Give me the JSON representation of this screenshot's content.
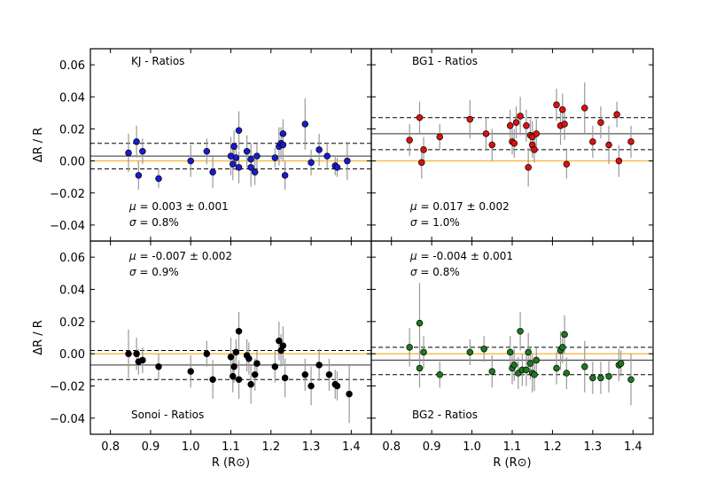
{
  "chart_data": {
    "type": "scatter",
    "xlabel": "R (R⊙)",
    "ylabel": "ΔR / R",
    "xlim": [
      0.75,
      1.45
    ],
    "ylim": [
      -0.05,
      0.07
    ],
    "xticks": [
      "0.8",
      "0.9",
      "1.0",
      "1.1",
      "1.2",
      "1.3",
      "1.4"
    ],
    "xtick_values": [
      0.8,
      0.9,
      1.0,
      1.1,
      1.2,
      1.3,
      1.4
    ],
    "yticks_top": [
      "0.06",
      "0.04",
      "0.02",
      "0.00",
      "−0.02",
      "−0.04"
    ],
    "ytick_values_top": [
      0.06,
      0.04,
      0.02,
      0.0,
      -0.02,
      -0.04
    ],
    "yticks_bottom": [
      "0.06",
      "0.04",
      "0.02",
      "0.00",
      "−0.02",
      "−0.04"
    ],
    "ytick_values_bottom": [
      0.06,
      0.04,
      0.02,
      0.0,
      -0.02,
      -0.04
    ],
    "colors": {
      "zero_line": "#f5b942",
      "mean_line": "#555555",
      "error_bar": "#999999"
    },
    "panels": [
      {
        "title": "KJ - Ratios",
        "title_pos": "top-left",
        "stats_pos": "bottom-left",
        "mu_value": "0.003",
        "mu_err": "0.001",
        "sigma_value": "0.8%",
        "mean": 0.003,
        "band": [
          -0.005,
          0.011
        ],
        "color": "#1a1ad6",
        "points": [
          {
            "x": 0.845,
            "y": 0.005,
            "err": 0.012
          },
          {
            "x": 0.865,
            "y": 0.012,
            "err": 0.01
          },
          {
            "x": 0.87,
            "y": -0.009,
            "err": 0.009
          },
          {
            "x": 0.88,
            "y": 0.006,
            "err": 0.008
          },
          {
            "x": 0.92,
            "y": -0.011,
            "err": 0.006
          },
          {
            "x": 1.0,
            "y": 0.0,
            "err": 0.01
          },
          {
            "x": 1.04,
            "y": 0.006,
            "err": 0.008
          },
          {
            "x": 1.055,
            "y": -0.007,
            "err": 0.01
          },
          {
            "x": 1.1,
            "y": 0.003,
            "err": 0.012
          },
          {
            "x": 1.105,
            "y": -0.002,
            "err": 0.01
          },
          {
            "x": 1.108,
            "y": 0.009,
            "err": 0.01
          },
          {
            "x": 1.113,
            "y": 0.002,
            "err": 0.008
          },
          {
            "x": 1.12,
            "y": 0.019,
            "err": 0.012
          },
          {
            "x": 1.12,
            "y": -0.004,
            "err": 0.01
          },
          {
            "x": 1.14,
            "y": 0.006,
            "err": 0.01
          },
          {
            "x": 1.15,
            "y": 0.001,
            "err": 0.01
          },
          {
            "x": 1.15,
            "y": -0.004,
            "err": 0.012
          },
          {
            "x": 1.16,
            "y": -0.007,
            "err": 0.008
          },
          {
            "x": 1.165,
            "y": 0.003,
            "err": 0.008
          },
          {
            "x": 1.21,
            "y": 0.002,
            "err": 0.006
          },
          {
            "x": 1.22,
            "y": 0.009,
            "err": 0.012
          },
          {
            "x": 1.225,
            "y": 0.011,
            "err": 0.01
          },
          {
            "x": 1.23,
            "y": 0.01,
            "err": 0.01
          },
          {
            "x": 1.23,
            "y": 0.017,
            "err": 0.009
          },
          {
            "x": 1.235,
            "y": -0.009,
            "err": 0.009
          },
          {
            "x": 1.285,
            "y": 0.023,
            "err": 0.016
          },
          {
            "x": 1.3,
            "y": -0.001,
            "err": 0.008
          },
          {
            "x": 1.32,
            "y": 0.007,
            "err": 0.01
          },
          {
            "x": 1.34,
            "y": 0.003,
            "err": 0.008
          },
          {
            "x": 1.36,
            "y": -0.003,
            "err": 0.006
          },
          {
            "x": 1.365,
            "y": -0.004,
            "err": 0.006
          },
          {
            "x": 1.39,
            "y": 0.0,
            "err": 0.012
          }
        ]
      },
      {
        "title": "BG1 - Ratios",
        "title_pos": "top-left",
        "stats_pos": "bottom-left",
        "mu_value": "0.017",
        "mu_err": "0.002",
        "sigma_value": "1.0%",
        "mean": 0.017,
        "band": [
          0.007,
          0.027
        ],
        "color": "#e0110d",
        "points": [
          {
            "x": 0.845,
            "y": 0.013,
            "err": 0.01
          },
          {
            "x": 0.87,
            "y": 0.027,
            "err": 0.01
          },
          {
            "x": 0.875,
            "y": -0.001,
            "err": 0.01
          },
          {
            "x": 0.88,
            "y": 0.007,
            "err": 0.008
          },
          {
            "x": 0.92,
            "y": 0.015,
            "err": 0.008
          },
          {
            "x": 0.995,
            "y": 0.026,
            "err": 0.012
          },
          {
            "x": 1.035,
            "y": 0.017,
            "err": 0.01
          },
          {
            "x": 1.05,
            "y": 0.01,
            "err": 0.01
          },
          {
            "x": 1.095,
            "y": 0.022,
            "err": 0.01
          },
          {
            "x": 1.1,
            "y": 0.012,
            "err": 0.008
          },
          {
            "x": 1.105,
            "y": 0.011,
            "err": 0.009
          },
          {
            "x": 1.11,
            "y": 0.024,
            "err": 0.01
          },
          {
            "x": 1.12,
            "y": 0.028,
            "err": 0.012
          },
          {
            "x": 1.135,
            "y": 0.022,
            "err": 0.01
          },
          {
            "x": 1.14,
            "y": -0.004,
            "err": 0.012
          },
          {
            "x": 1.145,
            "y": 0.016,
            "err": 0.01
          },
          {
            "x": 1.15,
            "y": 0.015,
            "err": 0.01
          },
          {
            "x": 1.15,
            "y": 0.01,
            "err": 0.008
          },
          {
            "x": 1.16,
            "y": 0.017,
            "err": 0.009
          },
          {
            "x": 1.155,
            "y": 0.007,
            "err": 0.008
          },
          {
            "x": 1.21,
            "y": 0.035,
            "err": 0.01
          },
          {
            "x": 1.22,
            "y": 0.022,
            "err": 0.012
          },
          {
            "x": 1.225,
            "y": 0.032,
            "err": 0.01
          },
          {
            "x": 1.23,
            "y": 0.023,
            "err": 0.01
          },
          {
            "x": 1.235,
            "y": -0.002,
            "err": 0.009
          },
          {
            "x": 1.28,
            "y": 0.033,
            "err": 0.016
          },
          {
            "x": 1.3,
            "y": 0.012,
            "err": 0.01
          },
          {
            "x": 1.32,
            "y": 0.024,
            "err": 0.01
          },
          {
            "x": 1.34,
            "y": 0.01,
            "err": 0.012
          },
          {
            "x": 1.36,
            "y": 0.029,
            "err": 0.008
          },
          {
            "x": 1.365,
            "y": 0.0,
            "err": 0.01
          },
          {
            "x": 1.395,
            "y": 0.012,
            "err": 0.01
          }
        ]
      },
      {
        "title": "Sonoi - Ratios",
        "title_pos": "bottom-left",
        "stats_pos": "top-left",
        "mu_value": "-0.007",
        "mu_err": "0.002",
        "sigma_value": "0.9%",
        "mean": -0.007,
        "band": [
          -0.016,
          0.002
        ],
        "color": "#000000",
        "points": [
          {
            "x": 0.845,
            "y": 0.0,
            "err": 0.015
          },
          {
            "x": 0.865,
            "y": 0.0,
            "err": 0.01
          },
          {
            "x": 0.87,
            "y": -0.005,
            "err": 0.008
          },
          {
            "x": 0.88,
            "y": -0.004,
            "err": 0.008
          },
          {
            "x": 0.92,
            "y": -0.008,
            "err": 0.008
          },
          {
            "x": 1.0,
            "y": -0.011,
            "err": 0.01
          },
          {
            "x": 1.04,
            "y": 0.0,
            "err": 0.008
          },
          {
            "x": 1.055,
            "y": -0.016,
            "err": 0.012
          },
          {
            "x": 1.1,
            "y": -0.002,
            "err": 0.012
          },
          {
            "x": 1.105,
            "y": -0.014,
            "err": 0.01
          },
          {
            "x": 1.108,
            "y": -0.008,
            "err": 0.01
          },
          {
            "x": 1.113,
            "y": 0.001,
            "err": 0.008
          },
          {
            "x": 1.12,
            "y": 0.014,
            "err": 0.012
          },
          {
            "x": 1.12,
            "y": -0.016,
            "err": 0.012
          },
          {
            "x": 1.14,
            "y": -0.001,
            "err": 0.01
          },
          {
            "x": 1.145,
            "y": -0.003,
            "err": 0.01
          },
          {
            "x": 1.15,
            "y": -0.019,
            "err": 0.012
          },
          {
            "x": 1.16,
            "y": -0.013,
            "err": 0.01
          },
          {
            "x": 1.165,
            "y": -0.006,
            "err": 0.008
          },
          {
            "x": 1.21,
            "y": -0.008,
            "err": 0.01
          },
          {
            "x": 1.22,
            "y": 0.008,
            "err": 0.012
          },
          {
            "x": 1.225,
            "y": 0.002,
            "err": 0.01
          },
          {
            "x": 1.23,
            "y": 0.005,
            "err": 0.012
          },
          {
            "x": 1.235,
            "y": -0.015,
            "err": 0.012
          },
          {
            "x": 1.285,
            "y": -0.013,
            "err": 0.01
          },
          {
            "x": 1.3,
            "y": -0.02,
            "err": 0.012
          },
          {
            "x": 1.32,
            "y": -0.007,
            "err": 0.01
          },
          {
            "x": 1.345,
            "y": -0.013,
            "err": 0.01
          },
          {
            "x": 1.36,
            "y": -0.019,
            "err": 0.009
          },
          {
            "x": 1.365,
            "y": -0.02,
            "err": 0.009
          },
          {
            "x": 1.395,
            "y": -0.025,
            "err": 0.018
          }
        ]
      },
      {
        "title": "BG2 - Ratios",
        "title_pos": "bottom-left",
        "stats_pos": "top-left",
        "mu_value": "-0.004",
        "mu_err": "0.001",
        "sigma_value": "0.8%",
        "mean": -0.004,
        "band": [
          -0.013,
          0.004
        ],
        "color": "#1c7a1c",
        "points": [
          {
            "x": 0.845,
            "y": 0.004,
            "err": 0.012
          },
          {
            "x": 0.87,
            "y": 0.019,
            "err": 0.025
          },
          {
            "x": 0.87,
            "y": -0.009,
            "err": 0.012
          },
          {
            "x": 0.88,
            "y": 0.001,
            "err": 0.01
          },
          {
            "x": 0.92,
            "y": -0.013,
            "err": 0.008
          },
          {
            "x": 0.995,
            "y": 0.001,
            "err": 0.008
          },
          {
            "x": 1.03,
            "y": 0.003,
            "err": 0.008
          },
          {
            "x": 1.05,
            "y": -0.011,
            "err": 0.01
          },
          {
            "x": 1.095,
            "y": 0.001,
            "err": 0.01
          },
          {
            "x": 1.1,
            "y": -0.009,
            "err": 0.01
          },
          {
            "x": 1.105,
            "y": -0.007,
            "err": 0.01
          },
          {
            "x": 1.115,
            "y": -0.012,
            "err": 0.01
          },
          {
            "x": 1.12,
            "y": 0.014,
            "err": 0.012
          },
          {
            "x": 1.125,
            "y": -0.01,
            "err": 0.01
          },
          {
            "x": 1.135,
            "y": -0.01,
            "err": 0.01
          },
          {
            "x": 1.14,
            "y": 0.001,
            "err": 0.012
          },
          {
            "x": 1.145,
            "y": -0.006,
            "err": 0.01
          },
          {
            "x": 1.15,
            "y": -0.012,
            "err": 0.012
          },
          {
            "x": 1.155,
            "y": -0.013,
            "err": 0.01
          },
          {
            "x": 1.16,
            "y": -0.004,
            "err": 0.008
          },
          {
            "x": 1.21,
            "y": -0.009,
            "err": 0.01
          },
          {
            "x": 1.22,
            "y": 0.002,
            "err": 0.012
          },
          {
            "x": 1.225,
            "y": 0.004,
            "err": 0.01
          },
          {
            "x": 1.23,
            "y": 0.012,
            "err": 0.012
          },
          {
            "x": 1.235,
            "y": -0.012,
            "err": 0.01
          },
          {
            "x": 1.28,
            "y": -0.008,
            "err": 0.016
          },
          {
            "x": 1.3,
            "y": -0.015,
            "err": 0.01
          },
          {
            "x": 1.32,
            "y": -0.015,
            "err": 0.01
          },
          {
            "x": 1.34,
            "y": -0.014,
            "err": 0.01
          },
          {
            "x": 1.365,
            "y": -0.007,
            "err": 0.01
          },
          {
            "x": 1.37,
            "y": -0.006,
            "err": 0.008
          },
          {
            "x": 1.395,
            "y": -0.016,
            "err": 0.016
          }
        ]
      }
    ]
  }
}
